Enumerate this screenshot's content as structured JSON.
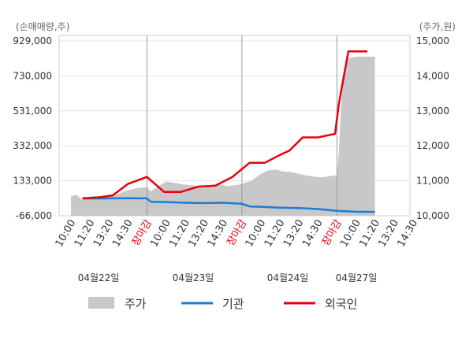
{
  "chart_data": {
    "type": "line",
    "left_axis_label": "(순매매량,주)",
    "right_axis_label": "(주가,원)",
    "left_ticks": [
      "929,000",
      "730,000",
      "531,000",
      "332,000",
      "133,000",
      "-66,000"
    ],
    "left_tick_values": [
      929000,
      730000,
      531000,
      332000,
      133000,
      -66000
    ],
    "right_ticks": [
      "15,000",
      "14,000",
      "13,000",
      "12,000",
      "11,000",
      "10,000"
    ],
    "right_tick_values": [
      15000,
      14000,
      13000,
      12000,
      11000,
      10000
    ],
    "ylim_left": [
      -66000,
      929000
    ],
    "ylim_right": [
      10000,
      15000
    ],
    "x_tick_labels": [
      {
        "text": "10:00",
        "close": false
      },
      {
        "text": "11:20",
        "close": false
      },
      {
        "text": "13:20",
        "close": false
      },
      {
        "text": "14:30",
        "close": false
      },
      {
        "text": "장마감",
        "close": true
      },
      {
        "text": "10:00",
        "close": false
      },
      {
        "text": "11:20",
        "close": false
      },
      {
        "text": "13:20",
        "close": false
      },
      {
        "text": "14:30",
        "close": false
      },
      {
        "text": "장마감",
        "close": true
      },
      {
        "text": "10:00",
        "close": false
      },
      {
        "text": "11:20",
        "close": false
      },
      {
        "text": "13:20",
        "close": false
      },
      {
        "text": "14:30",
        "close": false
      },
      {
        "text": "장마감",
        "close": true
      },
      {
        "text": "10:00",
        "close": false
      },
      {
        "text": "11:20",
        "close": false
      },
      {
        "text": "13:20",
        "close": false
      },
      {
        "text": "14:30",
        "close": false
      }
    ],
    "day_labels": [
      "04월22일",
      "04월23일",
      "04월24일",
      "04월27일"
    ],
    "day_separators_at_index": [
      4,
      9,
      14
    ],
    "series": [
      {
        "name": "주가",
        "kind": "area",
        "axis": "right",
        "color": "#c8c8c8",
        "x": [
          0,
          0.3,
          0.6,
          1,
          1.3,
          1.6,
          2,
          2.4,
          2.8,
          3.2,
          3.6,
          4,
          4.2,
          4.5,
          5,
          5.4,
          5.8,
          6.2,
          6.6,
          7,
          7.4,
          7.8,
          8.2,
          8.6,
          9,
          9.2,
          9.5,
          10,
          10.4,
          10.8,
          11.2,
          11.6,
          12,
          12.4,
          12.8,
          13.2,
          13.6,
          14,
          14.1,
          14.3,
          14.6,
          15,
          15.4,
          15.8,
          16
        ],
        "y": [
          10550,
          10600,
          10450,
          10550,
          10560,
          10540,
          10580,
          10600,
          10700,
          10760,
          10800,
          10820,
          10700,
          10800,
          10980,
          10950,
          10900,
          10880,
          10850,
          10800,
          10850,
          10900,
          10850,
          10870,
          10900,
          10950,
          11000,
          11200,
          11300,
          11320,
          11260,
          11250,
          11200,
          11150,
          11120,
          11100,
          11130,
          11160,
          11800,
          14000,
          14500,
          14550,
          14550,
          14550,
          14550
        ]
      },
      {
        "name": "기관",
        "kind": "line",
        "axis": "left",
        "color": "#1a7fd4",
        "x": [
          0.6,
          1,
          2,
          3,
          4,
          4.2,
          5,
          6,
          7,
          8,
          9,
          9.4,
          10,
          11,
          12,
          13,
          14,
          15,
          16
        ],
        "y": [
          32000,
          32000,
          33000,
          34000,
          33000,
          14000,
          12000,
          8000,
          6000,
          8000,
          2000,
          -13000,
          -15000,
          -20000,
          -22000,
          -28000,
          -38000,
          -43000,
          -44000
        ]
      },
      {
        "name": "외국인",
        "kind": "line",
        "axis": "left",
        "color": "#e8000b",
        "x": [
          0.6,
          1.4,
          2.2,
          3,
          4,
          4.9,
          5.8,
          6.7,
          7.6,
          8.5,
          9.4,
          10.2,
          11,
          11.5,
          12.2,
          13,
          13.9,
          14.1,
          14.6,
          15.6
        ],
        "y": [
          33000,
          38000,
          50000,
          115000,
          155000,
          70000,
          70000,
          100000,
          105000,
          155000,
          235000,
          235000,
          280000,
          305000,
          380000,
          380000,
          400000,
          570000,
          870000,
          870000
        ]
      }
    ],
    "legend": [
      {
        "label": "주가",
        "color": "#c8c8c8",
        "kind": "box"
      },
      {
        "label": "기관",
        "color": "#1a7fd4",
        "kind": "line"
      },
      {
        "label": "외국인",
        "color": "#e8000b",
        "kind": "line"
      }
    ],
    "legend_position": "bottom",
    "grid": "horizontal"
  }
}
